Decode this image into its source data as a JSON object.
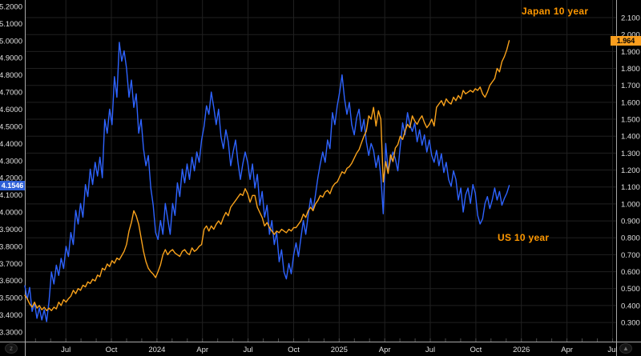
{
  "annotations": {
    "japan": "Japan 10 year",
    "us": "US 10 year"
  },
  "last_values": {
    "us": "4.1546",
    "japan": "1.964"
  },
  "controls": {
    "left_button": "z",
    "right_button": "▲"
  },
  "colors": {
    "background": "#000000",
    "us_line": "#2e63ff",
    "japan_line": "#f9a21b",
    "us_box": "#2d5fd7",
    "japan_box": "#fa9e1e",
    "grid": "#202020",
    "month_tick": "#4a4a4a",
    "axis_border": "#a8a8a8",
    "tick_text": "#e0e0e0",
    "annotation_text": "#ff9800"
  },
  "chart_data": {
    "type": "line",
    "title": "",
    "legend": [
      "US 10 year",
      "Japan 10 year"
    ],
    "x_axis": {
      "domain": [
        2023.275,
        2026.52
      ],
      "ticks": [
        {
          "t": 2023.5,
          "label": "Jul"
        },
        {
          "t": 2023.75,
          "label": "Oct"
        },
        {
          "t": 2024.0,
          "label": "2024"
        },
        {
          "t": 2024.25,
          "label": "Apr"
        },
        {
          "t": 2024.5,
          "label": "Jul"
        },
        {
          "t": 2024.75,
          "label": "Oct"
        },
        {
          "t": 2025.0,
          "label": "2025"
        },
        {
          "t": 2025.25,
          "label": "Apr"
        },
        {
          "t": 2025.5,
          "label": "Jul"
        },
        {
          "t": 2025.75,
          "label": "Oct"
        },
        {
          "t": 2026.0,
          "label": "2026"
        },
        {
          "t": 2026.25,
          "label": "Apr"
        },
        {
          "t": 2026.5,
          "label": "Jul"
        }
      ]
    },
    "left_axis": {
      "series": "US 10 year",
      "min": 3.244,
      "max": 5.237,
      "decimals": 4,
      "ticks": [
        3.3,
        3.4,
        3.5,
        3.6,
        3.7,
        3.8,
        3.9,
        4.0,
        4.1,
        4.2,
        4.3,
        4.4,
        4.5,
        4.6,
        4.7,
        4.8,
        4.9,
        5.0,
        5.1,
        5.2
      ],
      "last_value": 4.1546
    },
    "right_axis": {
      "series": "Japan 10 year",
      "min": 0.187,
      "max": 2.204,
      "decimals": 3,
      "ticks": [
        0.3,
        0.4,
        0.5,
        0.6,
        0.7,
        0.8,
        0.9,
        1.0,
        1.1,
        1.2,
        1.3,
        1.4,
        1.5,
        1.6,
        1.7,
        1.8,
        1.9,
        2.0,
        2.1
      ],
      "last_value": 1.964
    },
    "x_range": [
      2023.275,
      2025.933
    ],
    "series": [
      {
        "name": "US 10 year",
        "axis": "left",
        "color_key": "us_line",
        "values": [
          3.57,
          3.49,
          3.56,
          3.42,
          3.47,
          3.38,
          3.44,
          3.37,
          3.43,
          3.36,
          3.48,
          3.65,
          3.58,
          3.69,
          3.63,
          3.73,
          3.67,
          3.8,
          3.74,
          3.88,
          3.81,
          4.01,
          3.93,
          4.05,
          3.97,
          4.16,
          4.09,
          4.25,
          4.16,
          4.29,
          4.21,
          4.32,
          4.2,
          4.54,
          4.46,
          4.6,
          4.51,
          4.79,
          4.67,
          4.99,
          4.88,
          4.94,
          4.84,
          4.67,
          4.77,
          4.61,
          4.69,
          4.46,
          4.54,
          4.37,
          4.27,
          4.33,
          4.14,
          4.04,
          3.88,
          3.84,
          3.95,
          3.87,
          4.05,
          3.96,
          3.87,
          4.05,
          3.98,
          4.17,
          4.09,
          4.25,
          4.17,
          4.28,
          4.19,
          4.32,
          4.24,
          4.35,
          4.29,
          4.42,
          4.5,
          4.62,
          4.57,
          4.7,
          4.61,
          4.51,
          4.6,
          4.44,
          4.37,
          4.48,
          4.41,
          4.27,
          4.35,
          4.42,
          4.29,
          4.19,
          4.28,
          4.35,
          4.29,
          4.19,
          4.28,
          4.14,
          4.22,
          4.04,
          4.12,
          3.97,
          4.04,
          3.87,
          3.95,
          3.81,
          3.88,
          3.71,
          3.78,
          3.65,
          3.61,
          3.7,
          3.64,
          3.75,
          3.82,
          3.74,
          3.85,
          3.95,
          3.87,
          3.98,
          4.08,
          4.01,
          4.1,
          4.2,
          4.28,
          4.35,
          4.29,
          4.42,
          4.37,
          4.58,
          4.51,
          4.62,
          4.7,
          4.8,
          4.66,
          4.57,
          4.64,
          4.51,
          4.45,
          4.55,
          4.6,
          4.47,
          4.54,
          4.41,
          4.33,
          4.4,
          4.36,
          4.26,
          4.33,
          4.21,
          3.99,
          4.4,
          4.24,
          4.3,
          4.35,
          4.31,
          4.24,
          4.38,
          4.52,
          4.45,
          4.58,
          4.51,
          4.47,
          4.52,
          4.41,
          4.48,
          4.39,
          4.45,
          4.35,
          4.42,
          4.33,
          4.29,
          4.36,
          4.27,
          4.34,
          4.23,
          4.29,
          4.19,
          4.15,
          4.24,
          4.19,
          4.07,
          4.14,
          4.0,
          4.1,
          4.14,
          4.05,
          4.16,
          4.11,
          3.98,
          3.93,
          3.96,
          4.05,
          4.09,
          4.02,
          4.07,
          4.14,
          4.07,
          4.12,
          4.04,
          4.08,
          4.11,
          4.1546
        ]
      },
      {
        "name": "Japan 10 year",
        "axis": "right",
        "color_key": "japan_line",
        "values": [
          0.46,
          0.44,
          0.41,
          0.39,
          0.42,
          0.385,
          0.4,
          0.375,
          0.39,
          0.37,
          0.385,
          0.37,
          0.39,
          0.38,
          0.42,
          0.4,
          0.435,
          0.42,
          0.44,
          0.455,
          0.49,
          0.47,
          0.5,
          0.49,
          0.52,
          0.51,
          0.54,
          0.53,
          0.555,
          0.545,
          0.58,
          0.57,
          0.62,
          0.61,
          0.645,
          0.63,
          0.665,
          0.65,
          0.68,
          0.67,
          0.695,
          0.72,
          0.76,
          0.84,
          0.89,
          0.96,
          0.93,
          0.88,
          0.8,
          0.72,
          0.66,
          0.62,
          0.6,
          0.585,
          0.565,
          0.6,
          0.64,
          0.7,
          0.73,
          0.7,
          0.72,
          0.73,
          0.71,
          0.7,
          0.69,
          0.72,
          0.73,
          0.71,
          0.7,
          0.74,
          0.72,
          0.73,
          0.75,
          0.76,
          0.85,
          0.87,
          0.84,
          0.87,
          0.85,
          0.88,
          0.9,
          0.88,
          0.92,
          0.95,
          0.93,
          0.98,
          1.0,
          1.02,
          1.04,
          1.06,
          1.05,
          1.09,
          1.06,
          1.01,
          1.05,
          1.05,
          0.98,
          0.95,
          0.92,
          0.87,
          0.89,
          0.86,
          0.84,
          0.82,
          0.84,
          0.83,
          0.85,
          0.84,
          0.83,
          0.85,
          0.84,
          0.86,
          0.86,
          0.88,
          0.9,
          0.94,
          0.92,
          0.96,
          0.98,
          0.96,
          1.0,
          1.02,
          1.05,
          1.04,
          1.07,
          1.08,
          1.06,
          1.1,
          1.12,
          1.13,
          1.16,
          1.19,
          1.18,
          1.21,
          1.22,
          1.24,
          1.27,
          1.3,
          1.32,
          1.36,
          1.4,
          1.43,
          1.52,
          1.5,
          1.57,
          1.46,
          1.55,
          1.5,
          1.13,
          1.25,
          1.18,
          1.29,
          1.25,
          1.33,
          1.35,
          1.4,
          1.38,
          1.43,
          1.47,
          1.45,
          1.52,
          1.49,
          1.47,
          1.5,
          1.52,
          1.48,
          1.45,
          1.47,
          1.5,
          1.46,
          1.57,
          1.59,
          1.61,
          1.58,
          1.62,
          1.6,
          1.59,
          1.63,
          1.61,
          1.64,
          1.62,
          1.67,
          1.65,
          1.66,
          1.67,
          1.66,
          1.68,
          1.67,
          1.69,
          1.65,
          1.63,
          1.66,
          1.7,
          1.72,
          1.74,
          1.8,
          1.78,
          1.84,
          1.87,
          1.91,
          1.964
        ]
      }
    ]
  }
}
